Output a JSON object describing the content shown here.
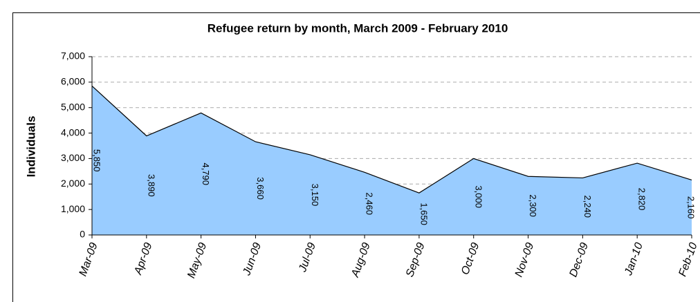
{
  "chart_data": {
    "type": "area",
    "title": "Refugee return by month, March 2009 - February 2010",
    "y_label": "Individuals",
    "categories": [
      "Mar-09",
      "Apr-09",
      "May-09",
      "Jun-09",
      "Jul-09",
      "Aug-09",
      "Sep-09",
      "Oct-09",
      "Nov-09",
      "Dec-09",
      "Jan-10",
      "Feb-10"
    ],
    "values": [
      5850,
      3890,
      4790,
      3660,
      3150,
      2460,
      1650,
      3000,
      2300,
      2240,
      2820,
      2160
    ],
    "value_labels": [
      "5,850",
      "3,890",
      "4,790",
      "3,660",
      "3,150",
      "2,460",
      "1,650",
      "3,000",
      "2,300",
      "2,240",
      "2,820",
      "2,160"
    ],
    "color": "#99ccff",
    "ylim": [
      0,
      7000
    ],
    "yticks": [
      0,
      {
        "value": 1000,
        "label": "1,000"
      },
      {
        "value": 2000,
        "label": "2,000"
      },
      {
        "value": 3000,
        "label": "3,000"
      },
      {
        "value": 4000,
        "label": "4,000"
      },
      {
        "value": 5000,
        "label": "5,000"
      },
      {
        "value": 6000,
        "label": "6,000"
      },
      {
        "value": 7000,
        "label": "7,000"
      }
    ],
    "grid": true
  }
}
